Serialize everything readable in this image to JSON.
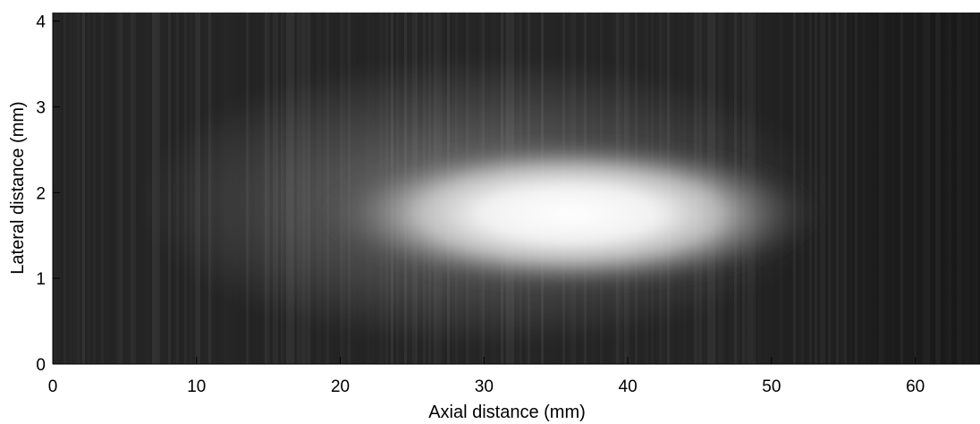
{
  "chart_data": {
    "type": "heatmap",
    "title": "",
    "xlabel": "Axial distance (mm)",
    "ylabel": "Lateral distance (mm)",
    "xlim": [
      0,
      64.5
    ],
    "ylim": [
      0,
      4.1
    ],
    "xticks": [
      0,
      10,
      20,
      30,
      40,
      50,
      60
    ],
    "yticks": [
      0,
      1,
      2,
      3,
      4
    ],
    "colormap": "gray",
    "grid": false,
    "background_color": "#262626",
    "blobs": [
      {
        "label": "bright focal region",
        "center": [
          36,
          1.75
        ],
        "span_x": [
          20,
          55
        ],
        "span_y": [
          0.85,
          2.65
        ],
        "peak_intensity": 0.97
      },
      {
        "label": "diffuse halo",
        "center": [
          30,
          1.9
        ],
        "span_x": [
          10,
          58
        ],
        "span_y": [
          0.2,
          3.6
        ],
        "peak_intensity": 0.3
      }
    ]
  }
}
